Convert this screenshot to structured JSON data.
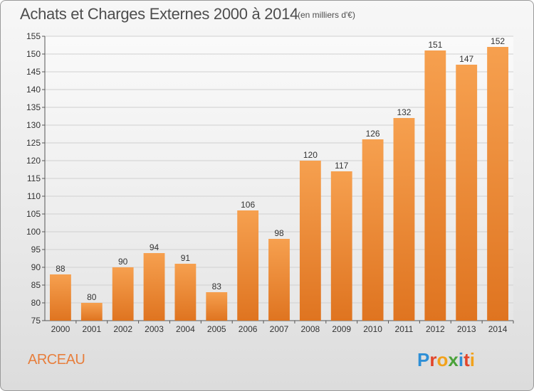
{
  "header": {
    "title": "Achats et Charges Externes 2000 à 2014",
    "unit": "(en milliers d'€)"
  },
  "footer": {
    "place": "ARCEAU",
    "logo_letters": [
      "P",
      "r",
      "o",
      "x",
      "i",
      "t",
      "i"
    ],
    "logo_colors": [
      "#2e8fd6",
      "#e2452a",
      "#f2a21b",
      "#4aa23a",
      "#2e8fd6",
      "#e2452a",
      "#f2a21b"
    ]
  },
  "chart_data": {
    "type": "bar",
    "title": "Achats et Charges Externes 2000 à 2014",
    "subtitle": "(en milliers d'€)",
    "xlabel": "",
    "ylabel": "",
    "categories": [
      "2000",
      "2001",
      "2002",
      "2003",
      "2004",
      "2005",
      "2006",
      "2007",
      "2008",
      "2009",
      "2010",
      "2011",
      "2012",
      "2013",
      "2014"
    ],
    "values": [
      88,
      80,
      90,
      94,
      91,
      83,
      106,
      98,
      120,
      117,
      126,
      132,
      151,
      147,
      152
    ],
    "ylim": [
      75,
      155
    ],
    "yticks": [
      75,
      80,
      85,
      90,
      95,
      100,
      105,
      110,
      115,
      120,
      125,
      130,
      135,
      140,
      145,
      150,
      155
    ],
    "grid": true,
    "bar_color_top": "#f6a04f",
    "bar_color_bottom": "#df7420"
  }
}
